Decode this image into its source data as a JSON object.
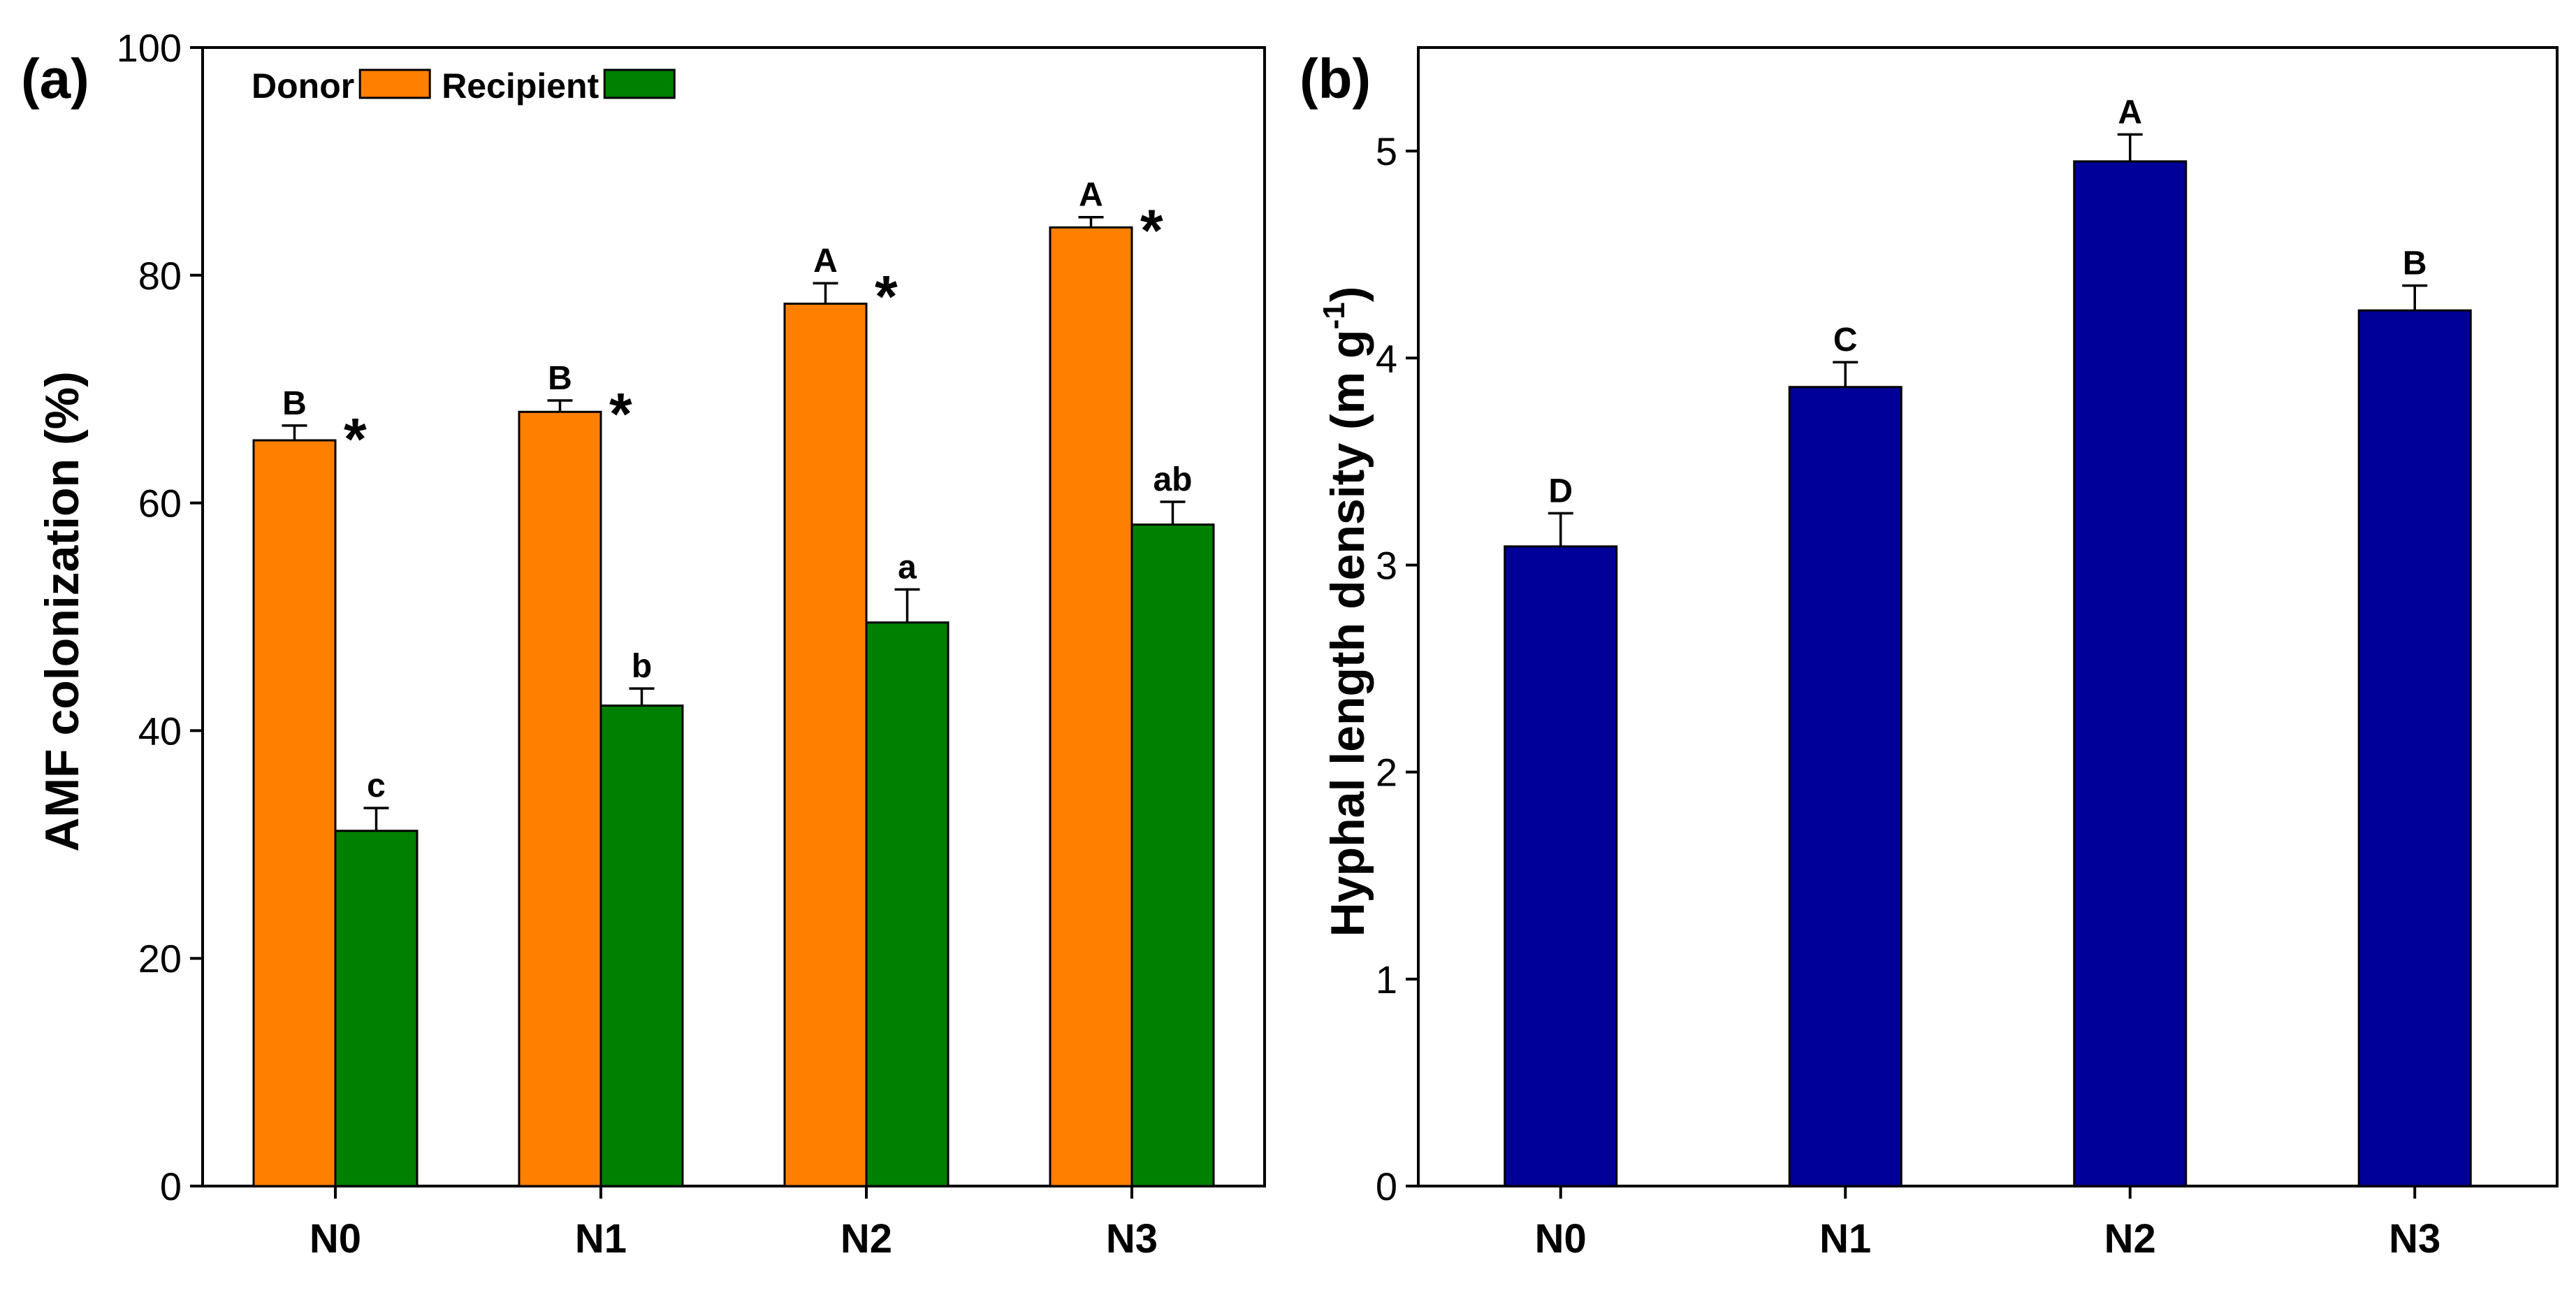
{
  "chart_data": [
    {
      "panel_label": "(a)",
      "type": "bar",
      "categories": [
        "N0",
        "N1",
        "N2",
        "N3"
      ],
      "ylabel": "AMF colonization (%)",
      "xlabel": "",
      "ylim": [
        0,
        100
      ],
      "yticks": [
        0,
        20,
        40,
        60,
        80,
        100
      ],
      "legend_position": "top-left",
      "series": [
        {
          "name": "Donor",
          "color": "#ff8000",
          "values": [
            65.5,
            68.0,
            77.5,
            84.2
          ],
          "errors": [
            1.3,
            1.0,
            1.8,
            0.9
          ],
          "letters": [
            "B",
            "B",
            "A",
            "A"
          ],
          "stars": [
            "*",
            "*",
            "*",
            "*"
          ]
        },
        {
          "name": "Recipient",
          "color": "#008000",
          "values": [
            31.2,
            42.2,
            49.5,
            58.1
          ],
          "errors": [
            2.0,
            1.5,
            2.9,
            2.0
          ],
          "letters": [
            "c",
            "b",
            "a",
            "ab"
          ]
        }
      ]
    },
    {
      "panel_label": "(b)",
      "type": "bar",
      "categories": [
        "N0",
        "N1",
        "N2",
        "N3"
      ],
      "ylabel": "Hyphal length density (m g",
      "ylabel_superscript": "-1",
      "ylabel_close": ")",
      "xlabel": "",
      "ylim": [
        0,
        5.5
      ],
      "yticks": [
        0,
        1,
        2,
        3,
        4,
        5
      ],
      "series": [
        {
          "name": "Hyphal length density",
          "color": "#000099",
          "values": [
            3.09,
            3.86,
            4.95,
            4.23
          ],
          "errors": [
            0.16,
            0.12,
            0.13,
            0.12
          ],
          "letters": [
            "D",
            "C",
            "A",
            "B"
          ]
        }
      ]
    }
  ]
}
